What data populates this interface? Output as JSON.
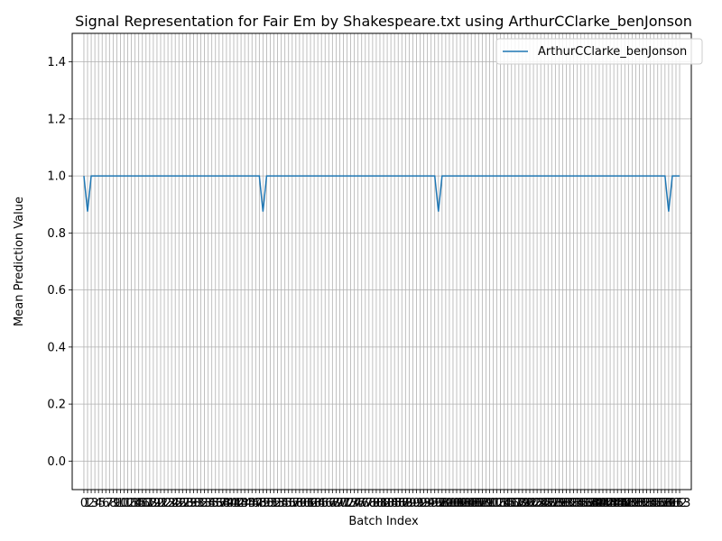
{
  "chart_data": {
    "type": "line",
    "title": "Signal Representation for Fair Em by Shakespeare.txt using ArthurCClarke_benJonson",
    "xlabel": "Batch Index",
    "ylabel": "Mean Prediction Value",
    "xlim": [
      -3.2,
      166.2
    ],
    "ylim": [
      -0.1,
      1.5
    ],
    "yticks": [
      0.0,
      0.2,
      0.4,
      0.6,
      0.8,
      1.0,
      1.2,
      1.4
    ],
    "ytick_labels": [
      "0.0",
      "0.2",
      "0.4",
      "0.6",
      "0.8",
      "1.0",
      "1.2",
      "1.4"
    ],
    "xticks_count": 164,
    "grid": true,
    "legend_position": "top-right",
    "series": [
      {
        "name": "ArthurCClarke_benJonson",
        "color": "#1f77b4",
        "dips": [
          1,
          49,
          97,
          160
        ],
        "dip_value": 0.875,
        "base_value": 1.0,
        "n_points": 164
      }
    ]
  }
}
